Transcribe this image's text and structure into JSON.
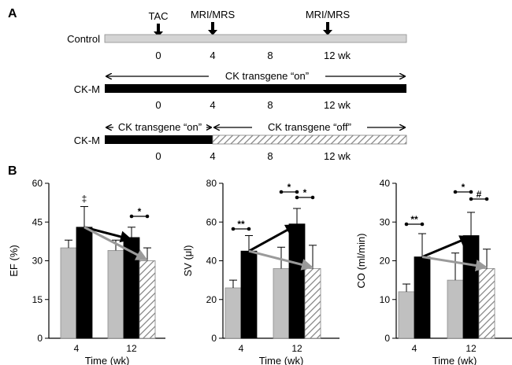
{
  "panel_a": {
    "label": "A",
    "timelines": [
      {
        "name": "Control",
        "events": [
          {
            "label": "TAC",
            "at": 0
          },
          {
            "label": "MRI/MRS",
            "at": 4
          },
          {
            "label": "MRI/MRS",
            "at": 12
          }
        ],
        "bar_fill": "light-gray",
        "ticks": [
          "0",
          "4",
          "8",
          "12 wk"
        ]
      },
      {
        "name": "CK-M",
        "spans": [
          {
            "label": "CK transgene “on”",
            "from": 0,
            "to": 14
          }
        ],
        "bar_fill": "black",
        "ticks": [
          "0",
          "4",
          "8",
          "12 wk"
        ]
      },
      {
        "name": "CK-M",
        "spans": [
          {
            "label": "CK transgene “on”",
            "from": 0,
            "to": 4
          },
          {
            "label": "CK transgene “off”",
            "from": 4,
            "to": 14
          }
        ],
        "bar_fill": "black-then-hatched",
        "ticks": [
          "0",
          "4",
          "8",
          "12 wk"
        ]
      }
    ],
    "colors": {
      "control": "#c0c0c0",
      "ckm": "#000000",
      "hatch": "#8a8a8a"
    }
  },
  "panel_b": {
    "label": "B"
  },
  "chart_data": [
    {
      "type": "bar",
      "ylabel": "EF (%)",
      "xlabel": "Time (wk)",
      "ylim": [
        0,
        60
      ],
      "yticks": [
        "0",
        "15",
        "30",
        "45",
        "60"
      ],
      "categories": [
        "4",
        "12"
      ],
      "series": [
        {
          "values": [
            35,
            34
          ],
          "errors": [
            3,
            4
          ],
          "color": "#c0c0c0"
        },
        {
          "values": [
            43,
            39
          ],
          "errors": [
            8,
            4
          ],
          "color": "#000000"
        },
        {
          "values": [
            null,
            30
          ],
          "errors": [
            null,
            5
          ],
          "color": "hatched"
        }
      ],
      "significance": [
        {
          "symbol": "‡",
          "group": "4"
        },
        {
          "symbol": "*",
          "group": "12"
        }
      ]
    },
    {
      "type": "bar",
      "ylabel": "SV (μl)",
      "xlabel": "Time (wk)",
      "ylim": [
        0,
        80
      ],
      "yticks": [
        "0",
        "20",
        "40",
        "60",
        "80"
      ],
      "categories": [
        "4",
        "12"
      ],
      "series": [
        {
          "values": [
            26,
            36
          ],
          "errors": [
            4,
            11
          ],
          "color": "#c0c0c0"
        },
        {
          "values": [
            45,
            59
          ],
          "errors": [
            8,
            8
          ],
          "color": "#000000"
        },
        {
          "values": [
            null,
            36
          ],
          "errors": [
            null,
            12
          ],
          "color": "hatched"
        }
      ],
      "significance": [
        {
          "symbol": "**",
          "group": "4"
        },
        {
          "symbol": "*",
          "group": "12"
        },
        {
          "symbol": "*",
          "group": "12"
        }
      ]
    },
    {
      "type": "bar",
      "ylabel": "CO (ml/min)",
      "xlabel": "Time (wk)",
      "ylim": [
        0,
        40
      ],
      "yticks": [
        "0",
        "10",
        "20",
        "30",
        "40"
      ],
      "categories": [
        "4",
        "12"
      ],
      "series": [
        {
          "values": [
            12,
            15
          ],
          "errors": [
            2,
            7
          ],
          "color": "#c0c0c0"
        },
        {
          "values": [
            21,
            26.5
          ],
          "errors": [
            6,
            6
          ],
          "color": "#000000"
        },
        {
          "values": [
            null,
            18
          ],
          "errors": [
            null,
            5
          ],
          "color": "hatched"
        }
      ],
      "significance": [
        {
          "symbol": "**",
          "group": "4"
        },
        {
          "symbol": "*",
          "group": "12"
        },
        {
          "symbol": "#",
          "group": "12"
        }
      ]
    }
  ]
}
